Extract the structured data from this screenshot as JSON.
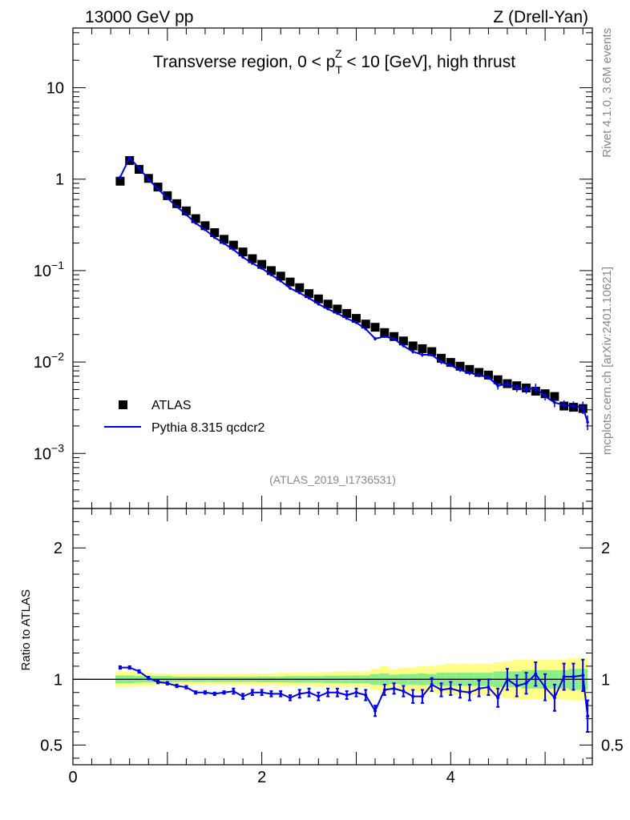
{
  "header": {
    "left": "13000 GeV pp",
    "right": "Z (Drell-Yan)",
    "side_top": "Rivet 4.1.0,  3.6M events",
    "side_bottom": "mcplots.cern.ch [arXiv:2401.10621]"
  },
  "chart_data": [
    {
      "type": "scatter",
      "title": "Transverse region, 0 < p_T^Z < 10 [GeV], high thrust",
      "title_parts": {
        "pre": "Transverse region, 0 < p",
        "sup": "Z",
        "sub": "T",
        "post": " < 10 [GeV], high thrust"
      },
      "watermark": "(ATLAS_2019_I1736531)",
      "yscale": "log",
      "xlim": [
        0,
        5.5
      ],
      "ylim": [
        0.00025,
        45
      ],
      "y_tick_labels": [
        {
          "value": 10,
          "base": "10",
          "exp": ""
        },
        {
          "value": 1,
          "base": "1",
          "exp": ""
        },
        {
          "value": 0.1,
          "base": "10",
          "exp": "−1"
        },
        {
          "value": 0.01,
          "base": "10",
          "exp": "−2"
        },
        {
          "value": 0.001,
          "base": "10",
          "exp": "−3"
        }
      ],
      "legend": {
        "position": "bottom-left",
        "entries": [
          "ATLAS",
          "Pythia 8.315 qcdcr2"
        ]
      },
      "series": [
        {
          "name": "ATLAS",
          "marker": "square",
          "color": "#000000",
          "x": [
            0.5,
            0.6,
            0.7,
            0.8,
            0.9,
            1.0,
            1.1,
            1.2,
            1.3,
            1.4,
            1.5,
            1.6,
            1.7,
            1.8,
            1.9,
            2.0,
            2.1,
            2.2,
            2.3,
            2.4,
            2.5,
            2.6,
            2.7,
            2.8,
            2.9,
            3.0,
            3.1,
            3.2,
            3.3,
            3.4,
            3.5,
            3.6,
            3.7,
            3.8,
            3.9,
            4.0,
            4.1,
            4.2,
            4.3,
            4.4,
            4.5,
            4.6,
            4.7,
            4.8,
            4.9,
            5.0,
            5.1,
            5.2,
            5.3,
            5.4
          ],
          "y": [
            0.95,
            1.6,
            1.28,
            1.02,
            0.82,
            0.66,
            0.54,
            0.45,
            0.37,
            0.31,
            0.26,
            0.22,
            0.19,
            0.16,
            0.135,
            0.117,
            0.1,
            0.087,
            0.075,
            0.065,
            0.056,
            0.049,
            0.043,
            0.038,
            0.034,
            0.03,
            0.026,
            0.024,
            0.021,
            0.019,
            0.017,
            0.015,
            0.014,
            0.013,
            0.011,
            0.0099,
            0.009,
            0.0083,
            0.0077,
            0.0072,
            0.0064,
            0.0058,
            0.0055,
            0.0052,
            0.0048,
            0.0045,
            0.0042,
            0.0033,
            0.0032,
            0.0031
          ]
        },
        {
          "name": "Pythia 8.315 qcdcr2",
          "marker": "line",
          "color": "#0000ee",
          "x": [
            0.5,
            0.6,
            0.7,
            0.8,
            0.9,
            1.0,
            1.1,
            1.2,
            1.3,
            1.4,
            1.5,
            1.6,
            1.7,
            1.8,
            1.9,
            2.0,
            2.1,
            2.2,
            2.3,
            2.4,
            2.5,
            2.6,
            2.7,
            2.8,
            2.9,
            3.0,
            3.1,
            3.2,
            3.3,
            3.4,
            3.5,
            3.6,
            3.7,
            3.8,
            3.9,
            4.0,
            4.1,
            4.2,
            4.3,
            4.4,
            4.5,
            4.6,
            4.7,
            4.8,
            4.9,
            5.0,
            5.1,
            5.2,
            5.3,
            5.4,
            5.45
          ],
          "y": [
            1.05,
            1.72,
            1.32,
            1.0,
            0.78,
            0.62,
            0.5,
            0.41,
            0.33,
            0.28,
            0.23,
            0.198,
            0.17,
            0.14,
            0.12,
            0.106,
            0.09,
            0.077,
            0.064,
            0.057,
            0.05,
            0.043,
            0.038,
            0.034,
            0.03,
            0.027,
            0.023,
            0.018,
            0.019,
            0.018,
            0.015,
            0.013,
            0.012,
            0.012,
            0.01,
            0.0092,
            0.0082,
            0.0076,
            0.0072,
            0.0068,
            0.0055,
            0.0058,
            0.0052,
            0.005,
            0.0052,
            0.0042,
            0.0036,
            0.0034,
            0.0033,
            0.0032,
            0.0022
          ],
          "yerr": [
            0.02,
            0.03,
            0.02,
            0.02,
            0.01,
            0.01,
            0.01,
            0.01,
            0.005,
            0.004,
            0.003,
            0.003,
            0.003,
            0.002,
            0.002,
            0.002,
            0.0015,
            0.0015,
            0.001,
            0.001,
            0.001,
            0.0008,
            0.0008,
            0.0007,
            0.0006,
            0.0006,
            0.0005,
            0.0008,
            0.0006,
            0.0006,
            0.0005,
            0.0006,
            0.0006,
            0.0005,
            0.0005,
            0.0004,
            0.0004,
            0.0004,
            0.0004,
            0.0004,
            0.0005,
            0.0005,
            0.0005,
            0.0005,
            0.0006,
            0.0004,
            0.0004,
            0.0004,
            0.0004,
            0.0005,
            0.0004
          ]
        }
      ]
    },
    {
      "type": "line",
      "ylabel": "Ratio to ATLAS",
      "xlim": [
        0,
        5.5
      ],
      "ylim": [
        0.35,
        2.3
      ],
      "x_ticks": [
        0,
        2,
        4
      ],
      "y_ticks": [
        0.5,
        1,
        2
      ],
      "reference": 1,
      "bands": {
        "x": [
          0.5,
          0.6,
          0.7,
          0.8,
          0.9,
          1.0,
          1.1,
          1.2,
          1.3,
          1.4,
          1.5,
          1.6,
          1.7,
          1.8,
          1.9,
          2.0,
          2.1,
          2.2,
          2.3,
          2.4,
          2.5,
          2.6,
          2.7,
          2.8,
          2.9,
          3.0,
          3.1,
          3.2,
          3.3,
          3.4,
          3.5,
          3.6,
          3.7,
          3.8,
          3.9,
          4.0,
          4.1,
          4.2,
          4.3,
          4.4,
          4.5,
          4.6,
          4.7,
          4.8,
          4.9,
          5.0,
          5.1,
          5.2,
          5.3,
          5.4
        ],
        "green_halfwidth": [
          0.03,
          0.03,
          0.025,
          0.025,
          0.025,
          0.025,
          0.02,
          0.02,
          0.02,
          0.02,
          0.02,
          0.02,
          0.02,
          0.02,
          0.02,
          0.022,
          0.022,
          0.022,
          0.025,
          0.025,
          0.025,
          0.025,
          0.028,
          0.028,
          0.028,
          0.03,
          0.03,
          0.04,
          0.045,
          0.035,
          0.04,
          0.04,
          0.045,
          0.04,
          0.05,
          0.05,
          0.05,
          0.05,
          0.05,
          0.05,
          0.06,
          0.06,
          0.06,
          0.07,
          0.07,
          0.07,
          0.07,
          0.07,
          0.08,
          0.08
        ],
        "yellow_halfwidth": [
          0.06,
          0.06,
          0.05,
          0.05,
          0.045,
          0.045,
          0.04,
          0.04,
          0.04,
          0.04,
          0.04,
          0.04,
          0.04,
          0.04,
          0.045,
          0.045,
          0.045,
          0.05,
          0.05,
          0.05,
          0.05,
          0.055,
          0.055,
          0.06,
          0.06,
          0.06,
          0.06,
          0.08,
          0.1,
          0.08,
          0.09,
          0.09,
          0.1,
          0.1,
          0.11,
          0.12,
          0.12,
          0.12,
          0.12,
          0.12,
          0.13,
          0.14,
          0.15,
          0.15,
          0.15,
          0.15,
          0.15,
          0.15,
          0.16,
          0.16
        ]
      },
      "series": [
        {
          "name": "Pythia 8.315 qcdcr2",
          "color": "#0000ee",
          "x": [
            0.5,
            0.6,
            0.7,
            0.8,
            0.9,
            1.0,
            1.1,
            1.2,
            1.3,
            1.4,
            1.5,
            1.6,
            1.7,
            1.8,
            1.9,
            2.0,
            2.1,
            2.2,
            2.3,
            2.4,
            2.5,
            2.6,
            2.7,
            2.8,
            2.9,
            3.0,
            3.1,
            3.2,
            3.3,
            3.4,
            3.5,
            3.6,
            3.7,
            3.8,
            3.9,
            4.0,
            4.1,
            4.2,
            4.3,
            4.4,
            4.5,
            4.6,
            4.7,
            4.8,
            4.9,
            5.0,
            5.1,
            5.2,
            5.3,
            5.4,
            5.45
          ],
          "y": [
            1.09,
            1.09,
            1.06,
            1.01,
            0.98,
            0.97,
            0.95,
            0.94,
            0.9,
            0.9,
            0.89,
            0.9,
            0.91,
            0.87,
            0.9,
            0.9,
            0.89,
            0.89,
            0.86,
            0.89,
            0.9,
            0.87,
            0.9,
            0.9,
            0.88,
            0.9,
            0.88,
            0.76,
            0.92,
            0.93,
            0.91,
            0.87,
            0.87,
            0.96,
            0.92,
            0.93,
            0.91,
            0.9,
            0.93,
            0.94,
            0.86,
            1.0,
            0.95,
            0.97,
            1.04,
            0.94,
            0.86,
            1.02,
            1.02,
            1.03,
            0.72
          ],
          "yerr": [
            0.01,
            0.01,
            0.01,
            0.01,
            0.01,
            0.01,
            0.01,
            0.01,
            0.01,
            0.01,
            0.01,
            0.01,
            0.02,
            0.02,
            0.02,
            0.02,
            0.02,
            0.02,
            0.02,
            0.03,
            0.03,
            0.03,
            0.03,
            0.03,
            0.03,
            0.03,
            0.04,
            0.04,
            0.04,
            0.04,
            0.04,
            0.05,
            0.05,
            0.05,
            0.05,
            0.05,
            0.05,
            0.06,
            0.06,
            0.06,
            0.07,
            0.08,
            0.08,
            0.08,
            0.09,
            0.1,
            0.1,
            0.1,
            0.1,
            0.12,
            0.12
          ]
        }
      ]
    }
  ]
}
